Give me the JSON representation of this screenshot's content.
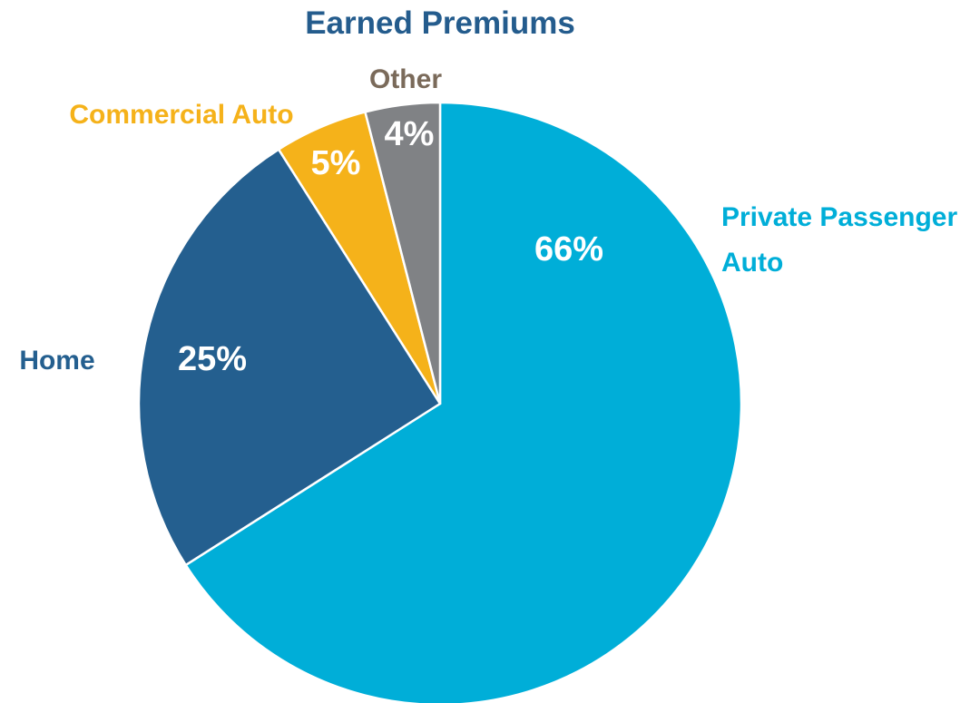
{
  "chart_data": {
    "type": "pie",
    "title": "Earned Premiums",
    "categories": [
      "Private Passenger Auto",
      "Home",
      "Commercial Auto",
      "Other"
    ],
    "values": [
      66,
      25,
      5,
      4
    ],
    "value_labels": [
      "66%",
      "25%",
      "5%",
      "4%"
    ],
    "colors": [
      "#00aed8",
      "#245f8f",
      "#f5b21a",
      "#808285"
    ],
    "label_colors": [
      "#00aed8",
      "#245f8f",
      "#f5b21a",
      "#7a6a5a"
    ],
    "start_angle": 0,
    "direction": "clockwise"
  }
}
